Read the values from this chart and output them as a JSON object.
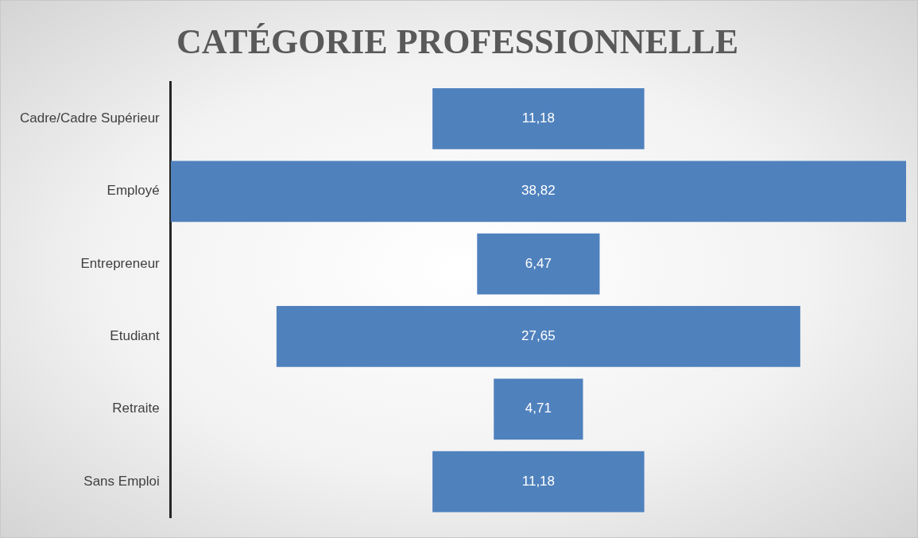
{
  "chart_data": {
    "type": "other",
    "title": "CATÉGORIE PROFESSIONNELLE",
    "categories": [
      "Cadre/Cadre Supérieur",
      "Employé",
      "Entrepreneur",
      "Etudiant",
      "Retraite",
      "Sans Emploi"
    ],
    "values": [
      11.18,
      38.82,
      6.47,
      27.65,
      4.71,
      11.18
    ],
    "value_labels": [
      "11,18",
      "38,82",
      "6,47",
      "27,65",
      "4,71",
      "11,18"
    ],
    "color": "#4f81bd",
    "legend": false
  }
}
